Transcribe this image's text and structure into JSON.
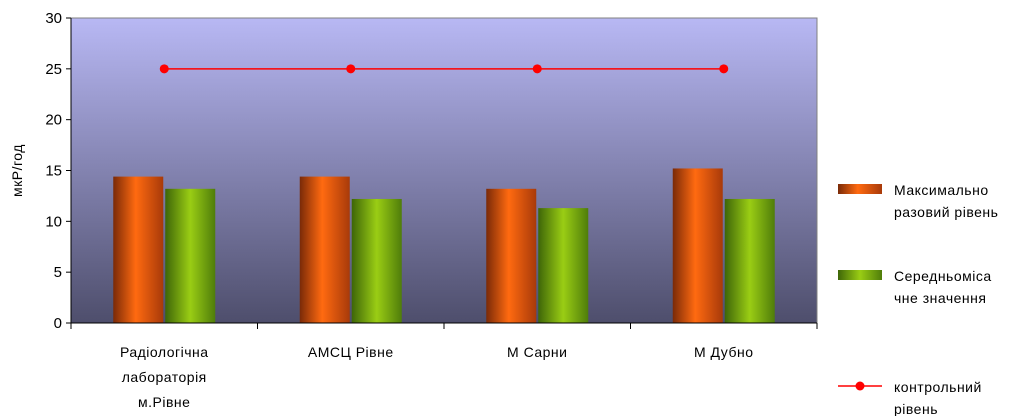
{
  "chart_data": {
    "type": "bar",
    "categories": [
      [
        "Радіологічна",
        "лабораторія",
        "м.Рівне"
      ],
      [
        "АМСЦ Рівне"
      ],
      [
        "М Сарни"
      ],
      [
        "М Дубно"
      ]
    ],
    "series": [
      {
        "name": [
          "Максимально",
          "разовий рівень"
        ],
        "type": "bar",
        "values": [
          14.4,
          14.4,
          13.2,
          15.2
        ],
        "color": "#e8580f"
      },
      {
        "name": [
          "Середньоміса",
          "чне значення"
        ],
        "type": "bar",
        "values": [
          13.2,
          12.2,
          11.3,
          12.2
        ],
        "color": "#7aaa10"
      },
      {
        "name": [
          "контрольний",
          "рівень"
        ],
        "type": "line",
        "values": [
          25,
          25,
          25,
          25
        ],
        "color": "#ff0000"
      }
    ],
    "ylabel": "мкР/год",
    "ylim": [
      0,
      30
    ],
    "yticks": [
      0,
      5,
      10,
      15,
      20,
      25,
      30
    ],
    "grid": false,
    "legend_position": "right",
    "plot_background": {
      "top": "#b8b8f4",
      "bottom": "#4e4e6c"
    }
  }
}
